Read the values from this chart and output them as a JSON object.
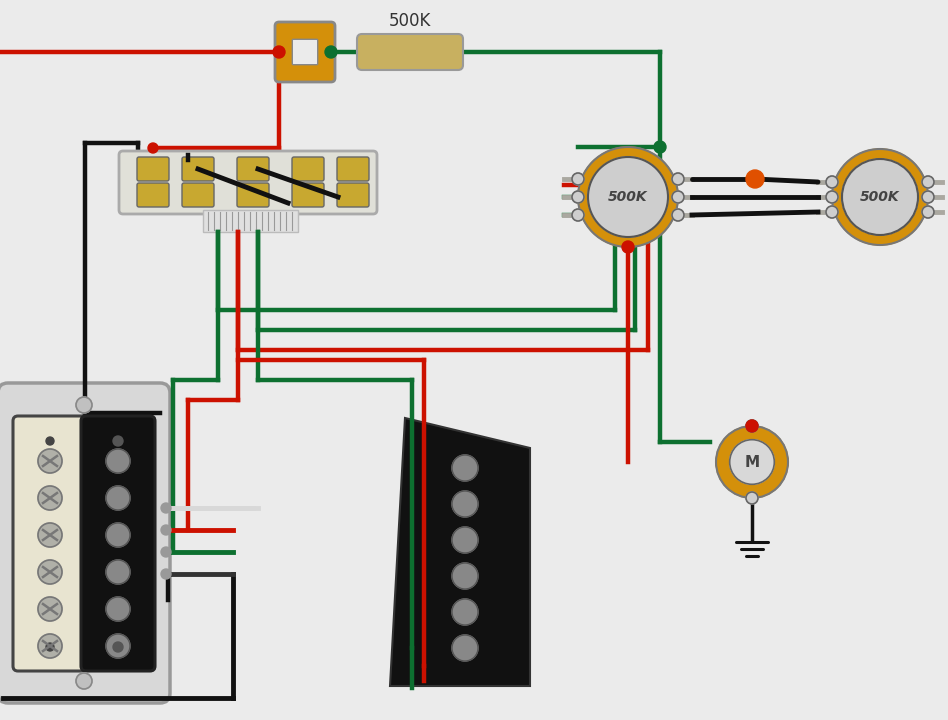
{
  "bg_color": "#ebebeb",
  "wire_colors": {
    "black": "#111111",
    "red": "#cc1100",
    "green": "#0d7030",
    "white": "#d8d8d8",
    "gray": "#888888"
  },
  "pot_color": "#d4900a",
  "pot_knob_color": "#cecece",
  "resistor_color": "#c8b060",
  "cap_color": "#d4900a",
  "title": "500K",
  "pot1_label": "500K",
  "pot2_label": "500K",
  "output_label": "M",
  "lw": 3.2
}
